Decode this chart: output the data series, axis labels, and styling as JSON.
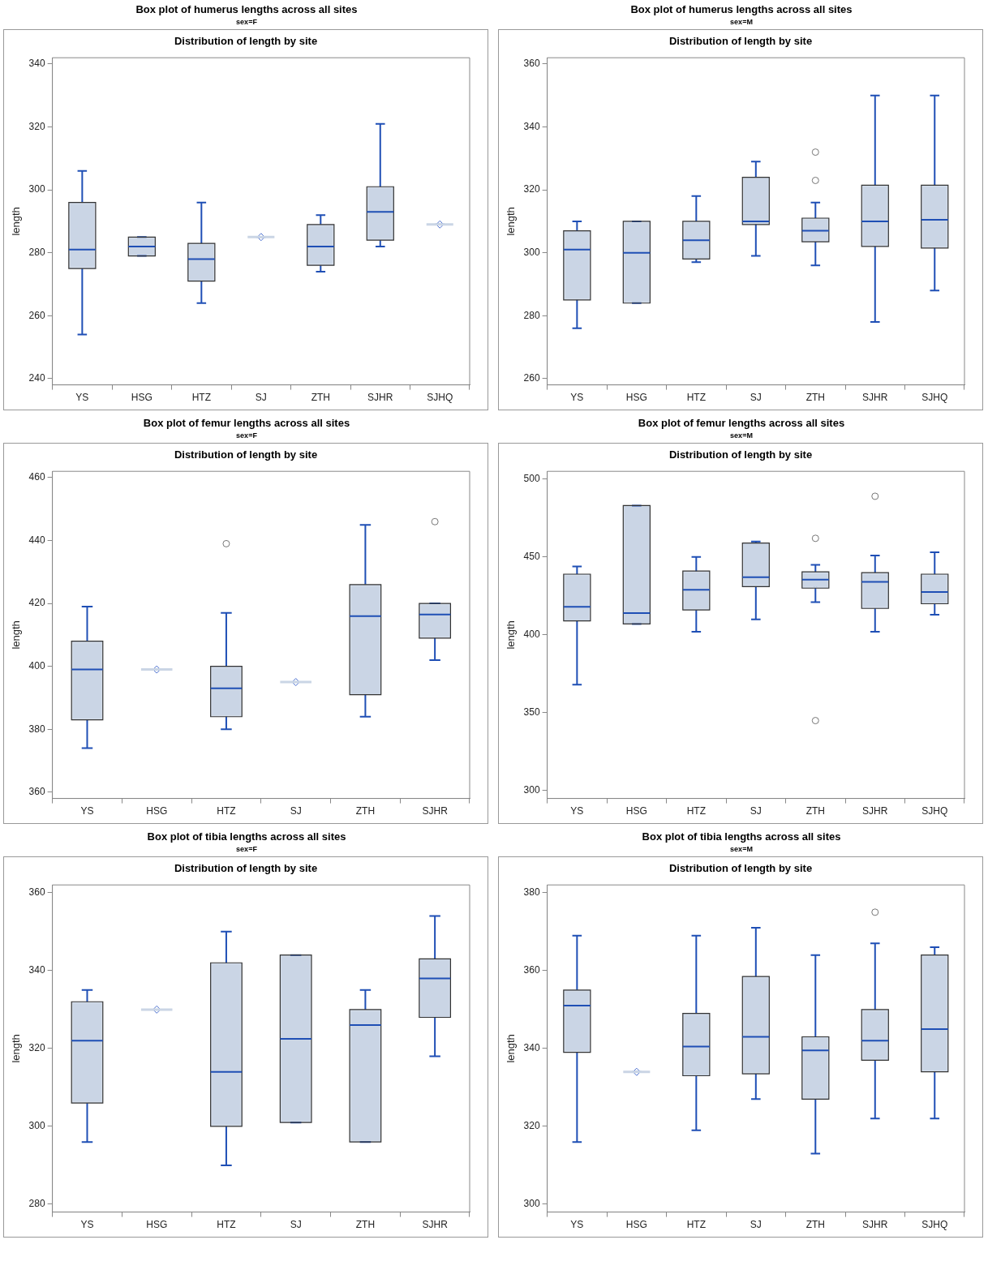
{
  "chart_data": [
    {
      "type": "box",
      "title": "Box plot of humerus lengths across all sites",
      "subtitle": "sex=F",
      "annotations": [
        "Distribution of length by site"
      ],
      "ylabel": "length",
      "categories": [
        "YS",
        "HSG",
        "HTZ",
        "SJ",
        "ZTH",
        "SJHR",
        "SJHQ"
      ],
      "ylim": [
        238,
        342
      ],
      "yticks": [
        240,
        260,
        280,
        300,
        320,
        340
      ],
      "legend": false,
      "series": [
        {
          "color": "#cad5e5",
          "boxes": [
            {
              "low": 254,
              "q1": 275,
              "median": 281,
              "q3": 296,
              "high": 306,
              "mean": 283
            },
            {
              "low": 279,
              "q1": 279,
              "median": 282,
              "q3": 285,
              "high": 285,
              "mean": 282
            },
            {
              "low": 264,
              "q1": 271,
              "median": 278,
              "q3": 283,
              "high": 296,
              "mean": 278
            },
            {
              "low": 285,
              "q1": 285,
              "median": 285,
              "q3": 285,
              "high": 285,
              "mean": 285
            },
            {
              "low": 274,
              "q1": 276,
              "median": 282,
              "q3": 289,
              "high": 292,
              "mean": 282
            },
            {
              "low": 282,
              "q1": 284,
              "median": 293,
              "q3": 301,
              "high": 321,
              "mean": 296
            },
            {
              "low": 289,
              "q1": 289,
              "median": 289,
              "q3": 289,
              "high": 289,
              "mean": 289
            }
          ]
        }
      ]
    },
    {
      "type": "box",
      "title": "Box plot of humerus lengths across all sites",
      "subtitle": "sex=M",
      "annotations": [
        "Distribution of length by site"
      ],
      "ylabel": "length",
      "categories": [
        "YS",
        "HSG",
        "HTZ",
        "SJ",
        "ZTH",
        "SJHR",
        "SJHQ"
      ],
      "ylim": [
        258,
        362
      ],
      "yticks": [
        260,
        280,
        300,
        320,
        340,
        360
      ],
      "legend": false,
      "series": [
        {
          "color": "#cad5e5",
          "boxes": [
            {
              "low": 276,
              "q1": 285,
              "median": 301,
              "q3": 307,
              "high": 310,
              "mean": 297
            },
            {
              "low": 284,
              "q1": 284,
              "median": 300,
              "q3": 310,
              "high": 310,
              "mean": 298
            },
            {
              "low": 297,
              "q1": 298,
              "median": 304,
              "q3": 310,
              "high": 318,
              "mean": 305
            },
            {
              "low": 299,
              "q1": 309,
              "median": 310,
              "q3": 324,
              "high": 329,
              "mean": 314
            },
            {
              "low": 296,
              "q1": 303.5,
              "median": 307,
              "q3": 311,
              "high": 316,
              "mean": 308.5,
              "outliers": [
                323,
                332
              ]
            },
            {
              "low": 278,
              "q1": 302,
              "median": 310,
              "q3": 321.5,
              "high": 350,
              "mean": 310.5
            },
            {
              "low": 288,
              "q1": 301.5,
              "median": 310.5,
              "q3": 321.5,
              "high": 350,
              "mean": 313
            }
          ]
        }
      ]
    },
    {
      "type": "box",
      "title": "Box plot of femur lengths across all sites",
      "subtitle": "sex=F",
      "annotations": [
        "Distribution of length by site"
      ],
      "ylabel": "length",
      "categories": [
        "YS",
        "HSG",
        "HTZ",
        "SJ",
        "ZTH",
        "SJHR"
      ],
      "ylim": [
        358,
        462
      ],
      "yticks": [
        360,
        380,
        400,
        420,
        440,
        460
      ],
      "legend": false,
      "series": [
        {
          "color": "#cad5e5",
          "boxes": [
            {
              "low": 374,
              "q1": 383,
              "median": 399,
              "q3": 408,
              "high": 419,
              "mean": 396
            },
            {
              "low": 399,
              "q1": 399,
              "median": 399,
              "q3": 399,
              "high": 399,
              "mean": 399
            },
            {
              "low": 380,
              "q1": 384,
              "median": 393,
              "q3": 400,
              "high": 417,
              "mean": 398,
              "outliers": [
                439
              ]
            },
            {
              "low": 395,
              "q1": 395,
              "median": 395,
              "q3": 395,
              "high": 395,
              "mean": 395
            },
            {
              "low": 384,
              "q1": 391,
              "median": 416,
              "q3": 426,
              "high": 445,
              "mean": 411
            },
            {
              "low": 402,
              "q1": 409,
              "median": 416.5,
              "q3": 420,
              "high": 420,
              "mean": 418,
              "outliers": [
                446
              ]
            }
          ]
        }
      ]
    },
    {
      "type": "box",
      "title": "Box plot of femur lengths across all sites",
      "subtitle": "sex=M",
      "annotations": [
        "Distribution of length by site"
      ],
      "ylabel": "length",
      "categories": [
        "YS",
        "HSG",
        "HTZ",
        "SJ",
        "ZTH",
        "SJHR",
        "SJHQ"
      ],
      "ylim": [
        295,
        505
      ],
      "yticks": [
        300,
        350,
        400,
        450,
        500
      ],
      "legend": false,
      "series": [
        {
          "color": "#cad5e5",
          "boxes": [
            {
              "low": 368,
              "q1": 409,
              "median": 418,
              "q3": 439,
              "high": 444,
              "mean": 418
            },
            {
              "low": 407,
              "q1": 407,
              "median": 414,
              "q3": 483,
              "high": 483,
              "mean": 435
            },
            {
              "low": 402,
              "q1": 416,
              "median": 429,
              "q3": 441,
              "high": 450,
              "mean": 428
            },
            {
              "low": 410,
              "q1": 431,
              "median": 437,
              "q3": 459,
              "high": 460,
              "mean": 440
            },
            {
              "low": 421,
              "q1": 430,
              "median": 435.5,
              "q3": 440.5,
              "high": 445,
              "mean": 432.5,
              "outliers": [
                345,
                462
              ]
            },
            {
              "low": 402,
              "q1": 417,
              "median": 434,
              "q3": 440,
              "high": 451,
              "mean": 434,
              "outliers": [
                489
              ]
            },
            {
              "low": 413,
              "q1": 420,
              "median": 427.5,
              "q3": 439,
              "high": 453,
              "mean": 430
            }
          ]
        }
      ]
    },
    {
      "type": "box",
      "title": "Box plot of tibia lengths across all sites",
      "subtitle": "sex=F",
      "annotations": [
        "Distribution of length by site"
      ],
      "ylabel": "length",
      "categories": [
        "YS",
        "HSG",
        "HTZ",
        "SJ",
        "ZTH",
        "SJHR"
      ],
      "ylim": [
        278,
        362
      ],
      "yticks": [
        280,
        300,
        320,
        340,
        360
      ],
      "legend": false,
      "series": [
        {
          "color": "#cad5e5",
          "boxes": [
            {
              "low": 296,
              "q1": 306,
              "median": 322,
              "q3": 332,
              "high": 335,
              "mean": 318.5
            },
            {
              "low": 330,
              "q1": 330,
              "median": 330,
              "q3": 330,
              "high": 330,
              "mean": 330
            },
            {
              "low": 290,
              "q1": 300,
              "median": 314,
              "q3": 342,
              "high": 350,
              "mean": 317
            },
            {
              "low": 301,
              "q1": 301,
              "median": 322.5,
              "q3": 344,
              "high": 344,
              "mean": 322.5
            },
            {
              "low": 296,
              "q1": 296,
              "median": 326,
              "q3": 330,
              "high": 335,
              "mean": 316.5
            },
            {
              "low": 318,
              "q1": 328,
              "median": 338,
              "q3": 343,
              "high": 354,
              "mean": 335.5
            }
          ]
        }
      ]
    },
    {
      "type": "box",
      "title": "Box plot of tibia lengths across all sites",
      "subtitle": "sex=M",
      "annotations": [
        "Distribution of length by site"
      ],
      "ylabel": "length",
      "categories": [
        "YS",
        "HSG",
        "HTZ",
        "SJ",
        "ZTH",
        "SJHR",
        "SJHQ"
      ],
      "ylim": [
        298,
        382
      ],
      "yticks": [
        300,
        320,
        340,
        360,
        380
      ],
      "legend": false,
      "series": [
        {
          "color": "#cad5e5",
          "boxes": [
            {
              "low": 316,
              "q1": 339,
              "median": 351,
              "q3": 355,
              "high": 369,
              "mean": 345.5
            },
            {
              "low": 334,
              "q1": 334,
              "median": 334,
              "q3": 334,
              "high": 334,
              "mean": 334
            },
            {
              "low": 319,
              "q1": 333,
              "median": 340.5,
              "q3": 349,
              "high": 369,
              "mean": 341.5
            },
            {
              "low": 327,
              "q1": 333.5,
              "median": 343,
              "q3": 358.5,
              "high": 371,
              "mean": 346
            },
            {
              "low": 313,
              "q1": 327,
              "median": 339.5,
              "q3": 343,
              "high": 364,
              "mean": 336
            },
            {
              "low": 322,
              "q1": 337,
              "median": 342,
              "q3": 350,
              "high": 367,
              "mean": 344,
              "outliers": [
                375
              ]
            },
            {
              "low": 322,
              "q1": 334,
              "median": 345,
              "q3": 364,
              "high": 366,
              "mean": 347
            }
          ]
        }
      ]
    }
  ]
}
